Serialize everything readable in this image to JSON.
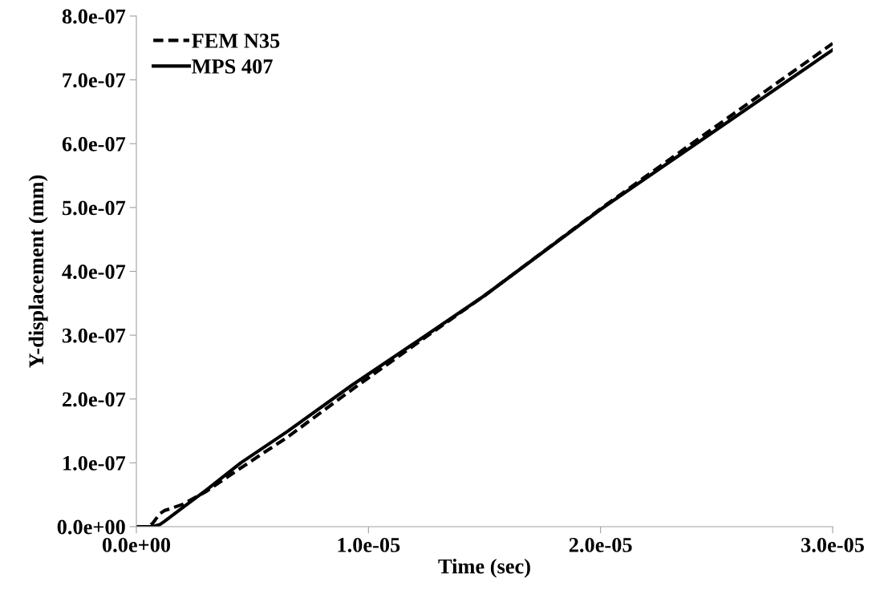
{
  "chart_data": {
    "type": "line",
    "xlabel": "Time (sec)",
    "ylabel": "Y-displacement (mm)",
    "x": [
      0,
      5e-07,
      7e-07,
      1e-06,
      1.2e-06,
      2e-06,
      3e-06,
      4.5e-06,
      6.5e-06,
      9.3e-06,
      1.2e-05,
      1.5e-05,
      2e-05,
      2.5e-05,
      3e-05
    ],
    "series": [
      {
        "name": "FEM N35",
        "color": "#000000",
        "line_style": "dashed",
        "values": [
          0,
          0,
          5e-09,
          2e-08,
          2.5e-08,
          3.5e-08,
          5.5e-08,
          9.2e-08,
          1.4e-07,
          2.15e-07,
          2.85e-07,
          3.62e-07,
          4.98e-07,
          6.28e-07,
          7.57e-07
        ]
      },
      {
        "name": "MPS 407",
        "color": "#000000",
        "line_style": "solid",
        "values": [
          0,
          0,
          0,
          3e-09,
          8e-09,
          3e-08,
          5.7e-08,
          1e-07,
          1.49e-07,
          2.22e-07,
          2.88e-07,
          3.62e-07,
          4.97e-07,
          6.22e-07,
          7.47e-07
        ]
      }
    ],
    "xlim": [
      0,
      3e-05
    ],
    "xticks": [
      {
        "value": 0,
        "label": "0.0e+00"
      },
      {
        "value": 1e-05,
        "label": "1.0e-05"
      },
      {
        "value": 2e-05,
        "label": "2.0e-05"
      },
      {
        "value": 3e-05,
        "label": "3.0e-05"
      }
    ],
    "ylim": [
      0,
      8e-07
    ],
    "yticks": [
      {
        "value": 0,
        "label": "0.0e+00"
      },
      {
        "value": 1e-07,
        "label": "1.0e-07"
      },
      {
        "value": 2e-07,
        "label": "2.0e-07"
      },
      {
        "value": 3e-07,
        "label": "3.0e-07"
      },
      {
        "value": 4e-07,
        "label": "4.0e-07"
      },
      {
        "value": 5e-07,
        "label": "5.0e-07"
      },
      {
        "value": 6e-07,
        "label": "6.0e-07"
      },
      {
        "value": 7e-07,
        "label": "7.0e-07"
      },
      {
        "value": 8e-07,
        "label": "8.0e-07"
      }
    ],
    "grid": false,
    "legend": "top left",
    "marker": "none"
  }
}
